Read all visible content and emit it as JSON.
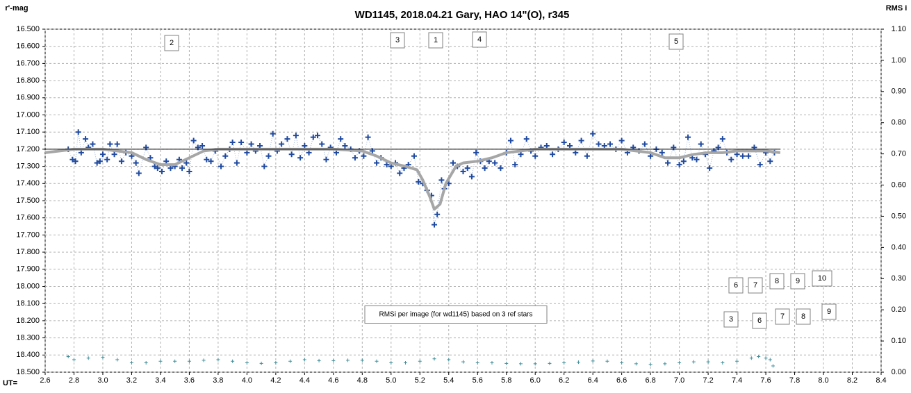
{
  "chart_data": {
    "type": "scatter",
    "title": "WD1145, 2018.04.21  Gary, HAO  14\"(O), r345",
    "ylabel": "r'-mag",
    "y2label": "RMS i",
    "xlabel": "UT=",
    "xlim": [
      2.6,
      8.4
    ],
    "xticks": [
      2.6,
      2.8,
      {
        "value": 3,
        "label": "3.0"
      },
      3.2,
      3.4,
      3.6,
      3.8,
      {
        "value": 4,
        "label": "4.0"
      },
      4.2,
      4.4,
      4.6,
      4.8,
      {
        "value": 5,
        "label": "5.0"
      },
      5.2,
      5.4,
      5.6,
      5.8,
      {
        "value": 6,
        "label": "6.0"
      },
      6.2,
      6.4,
      6.6,
      6.8,
      {
        "value": 7,
        "label": "7.0"
      },
      7.2,
      7.4,
      7.6,
      7.8,
      {
        "value": 8,
        "label": "8.0"
      },
      8.2,
      8.4
    ],
    "ylim": [
      18.5,
      16.5
    ],
    "yticks": [
      {
        "value": 16.5,
        "label": "16.500"
      },
      {
        "value": 16.6,
        "label": "16.600"
      },
      {
        "value": 16.7,
        "label": "16.700"
      },
      {
        "value": 16.8,
        "label": "16.800"
      },
      {
        "value": 16.9,
        "label": "16.900"
      },
      {
        "value": 17.0,
        "label": "17.000"
      },
      {
        "value": 17.1,
        "label": "17.100"
      },
      {
        "value": 17.2,
        "label": "17.200"
      },
      {
        "value": 17.3,
        "label": "17.300"
      },
      {
        "value": 17.4,
        "label": "17.400"
      },
      {
        "value": 17.5,
        "label": "17.500"
      },
      {
        "value": 17.6,
        "label": "17.600"
      },
      {
        "value": 17.7,
        "label": "17.700"
      },
      {
        "value": 17.8,
        "label": "17.800"
      },
      {
        "value": 17.9,
        "label": "17.900"
      },
      {
        "value": 18.0,
        "label": "18.000"
      },
      {
        "value": 18.1,
        "label": "18.100"
      },
      {
        "value": 18.2,
        "label": "18.200"
      },
      {
        "value": 18.3,
        "label": "18.300"
      },
      {
        "value": 18.4,
        "label": "18.400"
      },
      {
        "value": 18.5,
        "label": "18.500"
      }
    ],
    "y2lim": [
      0,
      1.1
    ],
    "y2ticks": [
      {
        "value": 0,
        "label": "0.00"
      },
      {
        "value": 0.1,
        "label": "0.10"
      },
      {
        "value": 0.2,
        "label": "0.20"
      },
      {
        "value": 0.3,
        "label": "0.30"
      },
      {
        "value": 0.4,
        "label": "0.40"
      },
      {
        "value": 0.5,
        "label": "0.50"
      },
      {
        "value": 0.6,
        "label": "0.60"
      },
      {
        "value": 0.7,
        "label": "0.70"
      },
      {
        "value": 0.8,
        "label": "0.80"
      },
      {
        "value": 0.9,
        "label": "0.90"
      },
      {
        "value": 1,
        "label": "1.00"
      },
      {
        "value": 1.1,
        "label": "1.10"
      }
    ],
    "grid": true,
    "series": [
      {
        "style": "markers",
        "connector": true,
        "color": "#1f4aa0",
        "x": [
          2.76,
          2.79,
          2.81,
          2.83,
          2.85,
          2.88,
          2.9,
          2.93,
          2.96,
          2.98,
          3.0,
          3.03,
          3.05,
          3.08,
          3.1,
          3.13,
          3.16,
          3.2,
          3.23,
          3.25,
          3.3,
          3.33,
          3.36,
          3.38,
          3.41,
          3.44,
          3.47,
          3.5,
          3.53,
          3.55,
          3.58,
          3.6,
          3.63,
          3.66,
          3.69,
          3.72,
          3.75,
          3.78,
          3.82,
          3.85,
          3.88,
          3.9,
          3.93,
          3.96,
          4.0,
          4.03,
          4.06,
          4.09,
          4.12,
          4.15,
          4.18,
          4.21,
          4.24,
          4.28,
          4.31,
          4.34,
          4.37,
          4.4,
          4.43,
          4.46,
          4.49,
          4.52,
          4.55,
          4.58,
          4.62,
          4.65,
          4.68,
          4.72,
          4.75,
          4.78,
          4.81,
          4.84,
          4.87,
          4.9,
          4.93,
          4.97,
          5.0,
          5.03,
          5.06,
          5.09,
          5.12,
          5.16,
          5.19,
          5.22,
          5.25,
          5.28,
          5.3,
          5.32,
          5.35,
          5.37,
          5.4,
          5.43,
          5.46,
          5.5,
          5.53,
          5.56,
          5.59,
          5.62,
          5.65,
          5.68,
          5.72,
          5.76,
          5.8,
          5.83,
          5.86,
          5.9,
          5.94,
          5.97,
          6.0,
          6.04,
          6.08,
          6.12,
          6.16,
          6.2,
          6.24,
          6.28,
          6.32,
          6.36,
          6.4,
          6.44,
          6.48,
          6.52,
          6.56,
          6.6,
          6.64,
          6.68,
          6.72,
          6.76,
          6.8,
          6.84,
          6.88,
          6.92,
          6.96,
          7.0,
          7.03,
          7.06,
          7.09,
          7.12,
          7.15,
          7.18,
          7.21,
          7.24,
          7.27,
          7.3,
          7.33,
          7.36,
          7.4,
          7.44,
          7.48,
          7.52,
          7.56,
          7.6,
          7.63,
          7.66
        ],
        "values": [
          17.2,
          17.26,
          17.27,
          17.1,
          17.22,
          17.14,
          17.19,
          17.17,
          17.28,
          17.27,
          17.23,
          17.26,
          17.17,
          17.23,
          17.17,
          17.27,
          17.22,
          17.24,
          17.28,
          17.34,
          17.19,
          17.25,
          17.3,
          17.31,
          17.33,
          17.27,
          17.31,
          17.3,
          17.26,
          17.31,
          17.28,
          17.33,
          17.15,
          17.19,
          17.18,
          17.26,
          17.27,
          17.21,
          17.3,
          17.24,
          17.2,
          17.16,
          17.28,
          17.16,
          17.22,
          17.17,
          17.21,
          17.18,
          17.3,
          17.24,
          17.11,
          17.21,
          17.17,
          17.14,
          17.23,
          17.12,
          17.25,
          17.18,
          17.22,
          17.13,
          17.12,
          17.17,
          17.26,
          17.19,
          17.22,
          17.14,
          17.18,
          17.2,
          17.25,
          17.21,
          17.24,
          17.13,
          17.21,
          17.28,
          17.25,
          17.29,
          17.3,
          17.28,
          17.34,
          17.31,
          17.29,
          17.24,
          17.39,
          17.4,
          17.44,
          17.47,
          17.64,
          17.58,
          17.38,
          17.43,
          17.4,
          17.28,
          17.3,
          17.33,
          17.31,
          17.36,
          17.22,
          17.27,
          17.31,
          17.27,
          17.28,
          17.31,
          17.22,
          17.15,
          17.29,
          17.23,
          17.14,
          17.21,
          17.24,
          17.19,
          17.18,
          17.23,
          17.2,
          17.16,
          17.18,
          17.22,
          17.15,
          17.24,
          17.11,
          17.17,
          17.18,
          17.17,
          17.2,
          17.15,
          17.22,
          17.19,
          17.21,
          17.17,
          17.24,
          17.2,
          17.22,
          17.28,
          17.19,
          17.29,
          17.27,
          17.13,
          17.25,
          17.26,
          17.17,
          17.23,
          17.31,
          17.21,
          17.19,
          17.14,
          17.22,
          17.26,
          17.23,
          17.24,
          17.24,
          17.19,
          17.29,
          17.22,
          17.27,
          17.22
        ]
      },
      {
        "style": "line",
        "color": "#a6a6a6",
        "x": [
          2.6,
          2.7,
          2.8,
          3.0,
          3.1,
          3.2,
          3.3,
          3.4,
          3.5,
          3.6,
          3.7,
          3.8,
          4.0,
          4.4,
          4.6,
          4.8,
          4.9,
          5.0,
          5.1,
          5.18,
          5.22,
          5.27,
          5.3,
          5.34,
          5.38,
          5.45,
          5.5,
          5.6,
          5.7,
          5.8,
          6.0,
          6.4,
          6.6,
          6.8,
          6.9,
          7.0,
          7.1,
          7.2,
          7.3,
          7.4,
          7.5,
          7.6,
          7.7
        ],
        "values": [
          17.22,
          17.21,
          17.2,
          17.2,
          17.21,
          17.22,
          17.26,
          17.29,
          17.29,
          17.25,
          17.21,
          17.2,
          17.2,
          17.2,
          17.2,
          17.21,
          17.24,
          17.28,
          17.3,
          17.32,
          17.38,
          17.48,
          17.55,
          17.52,
          17.4,
          17.3,
          17.28,
          17.27,
          17.25,
          17.22,
          17.2,
          17.2,
          17.2,
          17.22,
          17.25,
          17.25,
          17.23,
          17.22,
          17.22,
          17.21,
          17.21,
          17.21,
          17.22
        ]
      },
      {
        "style": "thin",
        "color": "#000000",
        "x": [
          2.6,
          7.7
        ],
        "values": [
          17.2,
          17.2
        ]
      },
      {
        "style": "small-markers",
        "axis": "y2",
        "color": "#3f8f9a",
        "x": [
          2.76,
          2.8,
          2.9,
          3.0,
          3.1,
          3.2,
          3.3,
          3.4,
          3.5,
          3.6,
          3.7,
          3.8,
          3.9,
          4.0,
          4.1,
          4.2,
          4.3,
          4.4,
          4.5,
          4.6,
          4.7,
          4.8,
          4.9,
          5.0,
          5.1,
          5.2,
          5.3,
          5.4,
          5.5,
          5.6,
          5.7,
          5.8,
          5.9,
          6.0,
          6.1,
          6.2,
          6.3,
          6.4,
          6.5,
          6.6,
          6.7,
          6.8,
          6.9,
          7.0,
          7.1,
          7.2,
          7.3,
          7.4,
          7.5,
          7.55,
          7.6,
          7.63,
          7.65
        ],
        "values": [
          0.05,
          0.04,
          0.045,
          0.048,
          0.04,
          0.03,
          0.03,
          0.035,
          0.035,
          0.035,
          0.038,
          0.04,
          0.035,
          0.03,
          0.028,
          0.03,
          0.035,
          0.04,
          0.037,
          0.037,
          0.038,
          0.038,
          0.035,
          0.03,
          0.03,
          0.035,
          0.043,
          0.04,
          0.033,
          0.03,
          0.03,
          0.028,
          0.027,
          0.027,
          0.028,
          0.03,
          0.032,
          0.036,
          0.035,
          0.03,
          0.027,
          0.025,
          0.027,
          0.03,
          0.033,
          0.033,
          0.03,
          0.035,
          0.045,
          0.05,
          0.045,
          0.04,
          0.02
        ]
      }
    ],
    "annotations": [
      "2",
      "3",
      "1",
      "4",
      "5",
      "6",
      "7",
      "8",
      "9",
      "10",
      "3",
      "6",
      "7",
      "8",
      "9",
      "RMSi per image (for wd1145) based on 3 ref stars"
    ]
  }
}
